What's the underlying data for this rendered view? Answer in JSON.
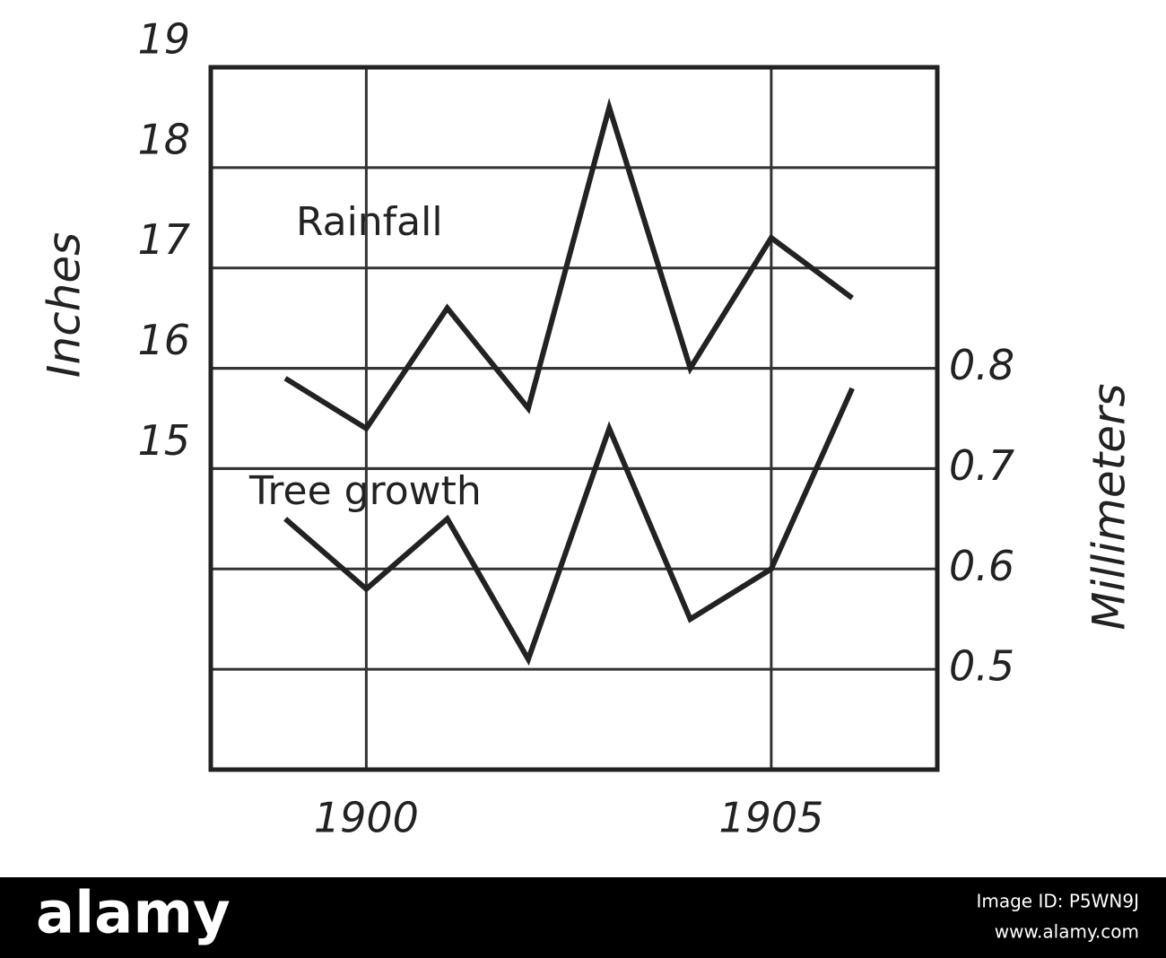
{
  "chart_data": {
    "type": "line",
    "x": [
      1899,
      1900,
      1901,
      1902,
      1903,
      1904,
      1905,
      1906
    ],
    "xlim": [
      1898.08,
      1907.05
    ],
    "xticks": [
      1900,
      1905
    ],
    "ylim": [
      12,
      19
    ],
    "yticks": [
      15,
      16,
      17,
      18,
      19
    ],
    "y2lim": [
      0.4,
      1.1
    ],
    "y2ticks": [
      0.5,
      0.6,
      0.7,
      0.8
    ],
    "ylabel": "Inches",
    "y2label": "Millimeters",
    "grid": true,
    "series": [
      {
        "name": "Rainfall",
        "color": "#222222",
        "values": [
          15.9,
          15.4,
          16.6,
          15.6,
          18.6,
          16.0,
          17.3,
          16.7
        ]
      },
      {
        "name": "Tree growth",
        "color": "#222222",
        "axis": "y2",
        "values": [
          0.65,
          0.58,
          0.65,
          0.51,
          0.74,
          0.55,
          0.6,
          0.78
        ]
      }
    ]
  },
  "watermark": {
    "brand": "alamy",
    "image_id": "Image ID: P5WN9J",
    "url": "www.alamy.com"
  }
}
